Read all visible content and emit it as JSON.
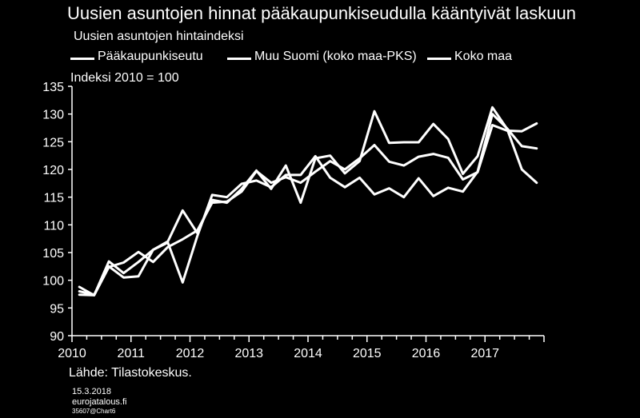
{
  "title": "Uusien asuntojen hinnat pääkaupunkiseudulla kääntyivät laskuun",
  "subtitle": "Uusien asuntojen hintaindeksi",
  "legend": [
    "Pääkaupunkiseutu",
    "Muu Suomi (koko maa-PKS)",
    "Koko maa"
  ],
  "index_note": "Indeksi 2010 = 100",
  "source": "Lähde: Tilastokeskus.",
  "footer": {
    "date": "15.3.2018",
    "site": "eurojatalous.fi",
    "code": "35607@Chart6"
  },
  "colors": {
    "background": "#000000",
    "lines": "#ffffff"
  },
  "chart_data": {
    "type": "line",
    "x_unit": "quarter",
    "x_tick_labels": [
      "2010",
      "2011",
      "2012",
      "2013",
      "2014",
      "2015",
      "2016",
      "2017"
    ],
    "yticks": [
      90,
      95,
      100,
      105,
      110,
      115,
      120,
      125,
      130,
      135
    ],
    "ylim": [
      90,
      135
    ],
    "x": [
      "2010Q1",
      "2010Q2",
      "2010Q3",
      "2010Q4",
      "2011Q1",
      "2011Q2",
      "2011Q3",
      "2011Q4",
      "2012Q1",
      "2012Q2",
      "2012Q3",
      "2012Q4",
      "2013Q1",
      "2013Q2",
      "2013Q3",
      "2013Q4",
      "2014Q1",
      "2014Q2",
      "2014Q3",
      "2014Q4",
      "2015Q1",
      "2015Q2",
      "2015Q3",
      "2015Q4",
      "2016Q1",
      "2016Q2",
      "2016Q3",
      "2016Q4",
      "2017Q1",
      "2017Q2",
      "2017Q3",
      "2017Q4"
    ],
    "series": [
      {
        "name": "Pääkaupunkiseutu",
        "values": [
          98.0,
          97.4,
          102.5,
          100.5,
          100.7,
          105.5,
          107.0,
          112.6,
          108.5,
          114.5,
          114.0,
          116.5,
          119.8,
          116.5,
          120.7,
          114.0,
          122.0,
          122.5,
          119.3,
          121.5,
          130.5,
          124.8,
          124.9,
          124.9,
          128.2,
          125.5,
          119.2,
          122.4,
          131.2,
          127.3,
          120.0,
          117.6
        ]
      },
      {
        "name": "Muu Suomi (koko maa-PKS)",
        "values": [
          97.4,
          97.3,
          103.4,
          101.3,
          103.3,
          105.5,
          106.8,
          99.6,
          108.0,
          115.4,
          115.0,
          117.4,
          118.0,
          116.8,
          119.0,
          119.0,
          122.4,
          118.5,
          116.8,
          118.5,
          115.5,
          116.6,
          115.0,
          118.4,
          115.2,
          116.7,
          116.0,
          119.6,
          130.0,
          127.4,
          124.2,
          123.8
        ]
      },
      {
        "name": "Koko maa",
        "values": [
          98.8,
          97.3,
          102.4,
          103.2,
          105.1,
          103.3,
          106.0,
          107.4,
          109.0,
          114.0,
          114.2,
          116.0,
          119.7,
          117.6,
          118.6,
          117.6,
          119.6,
          121.5,
          120.0,
          122.0,
          124.4,
          121.4,
          120.7,
          122.3,
          122.8,
          122.1,
          118.2,
          119.5,
          128.0,
          127.0,
          126.9,
          128.3
        ]
      }
    ]
  }
}
